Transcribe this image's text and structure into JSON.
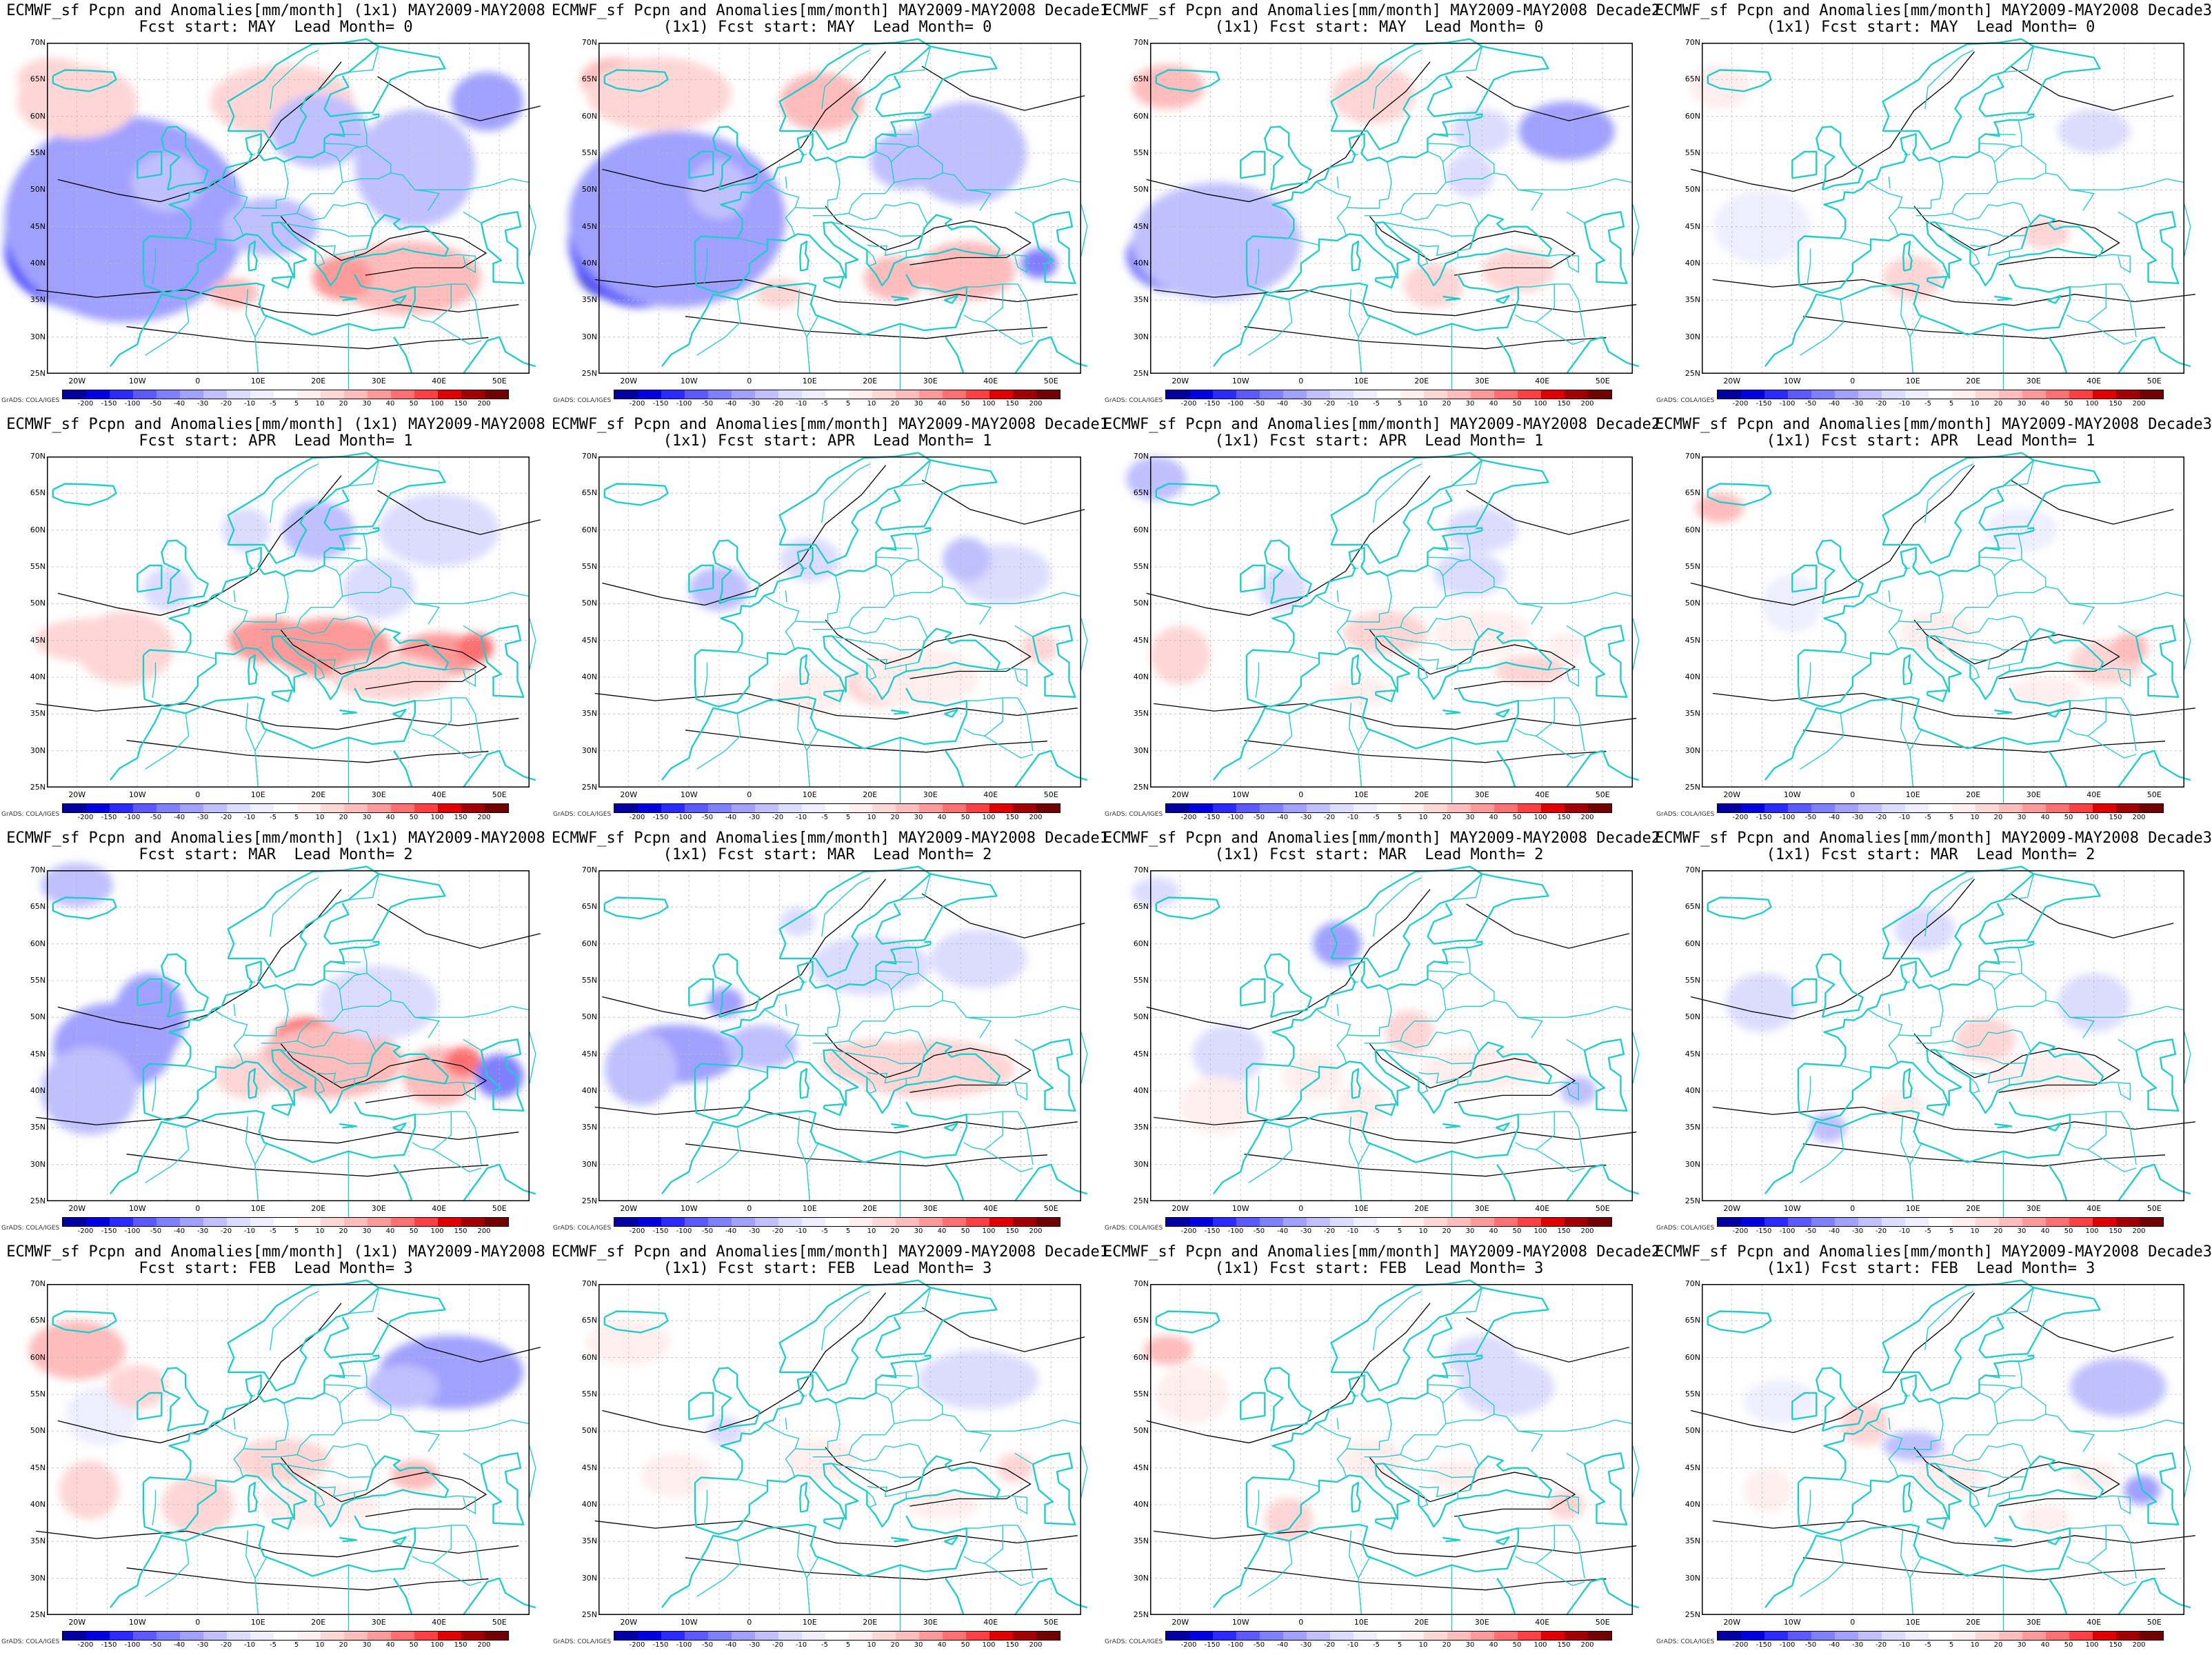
{
  "colorbar": {
    "labels": [
      "-200",
      "-150",
      "-100",
      "-50",
      "-40",
      "-30",
      "-20",
      "-10",
      "-5",
      "5",
      "10",
      "20",
      "30",
      "40",
      "50",
      "100",
      "150",
      "200"
    ],
    "colors": [
      "#0000a0",
      "#0000e0",
      "#2a2aff",
      "#5a5aff",
      "#8080ff",
      "#a0a0ff",
      "#c0c0ff",
      "#dcdcff",
      "#eeeeff",
      "#ffffff",
      "#ffeeee",
      "#ffd6d6",
      "#ffbcbc",
      "#ff9a9a",
      "#ff7070",
      "#ff4040",
      "#e00000",
      "#a00000",
      "#700000"
    ],
    "credit": "GrADS: COLA/IGES"
  },
  "axes": {
    "lat_labels": [
      "70N",
      "65N",
      "60N",
      "55N",
      "50N",
      "45N",
      "40N",
      "35N",
      "30N",
      "25N"
    ],
    "lon_labels": [
      "20W",
      "10W",
      "0",
      "10E",
      "20E",
      "30E",
      "40E",
      "50E"
    ]
  },
  "colors": {
    "coastline": "#22cccc",
    "border": "#22cccc",
    "contour": "#000000"
  },
  "panels": [
    {
      "title1": "ECMWF_sf Pcpn and Anomalies[mm/month] (1x1) MAY2009-MAY2008",
      "title2": "Fcst start: MAY  Lead Month= 0"
    },
    {
      "title1": "ECMWF_sf Pcpn and Anomalies[mm/month] MAY2009-MAY2008 Decade1",
      "title2": "(1x1) Fcst start: MAY  Lead Month= 0"
    },
    {
      "title1": "ECMWF_sf Pcpn and Anomalies[mm/month] MAY2009-MAY2008 Decade2",
      "title2": "(1x1) Fcst start: MAY  Lead Month= 0"
    },
    {
      "title1": "ECMWF_sf Pcpn and Anomalies[mm/month] MAY2009-MAY2008 Decade3",
      "title2": "(1x1) Fcst start: MAY  Lead Month= 0"
    },
    {
      "title1": "ECMWF_sf Pcpn and Anomalies[mm/month] (1x1) MAY2009-MAY2008",
      "title2": "Fcst start: APR  Lead Month= 1"
    },
    {
      "title1": "ECMWF_sf Pcpn and Anomalies[mm/month] MAY2009-MAY2008 Decade1",
      "title2": "(1x1) Fcst start: APR  Lead Month= 1"
    },
    {
      "title1": "ECMWF_sf Pcpn and Anomalies[mm/month] MAY2009-MAY2008 Decade2",
      "title2": "(1x1) Fcst start: APR  Lead Month= 1"
    },
    {
      "title1": "ECMWF_sf Pcpn and Anomalies[mm/month] MAY2009-MAY2008 Decade3",
      "title2": "(1x1) Fcst start: APR  Lead Month= 1"
    },
    {
      "title1": "ECMWF_sf Pcpn and Anomalies[mm/month] (1x1) MAY2009-MAY2008",
      "title2": "Fcst start: MAR  Lead Month= 2"
    },
    {
      "title1": "ECMWF_sf Pcpn and Anomalies[mm/month] MAY2009-MAY2008 Decade1",
      "title2": "(1x1) Fcst start: MAR  Lead Month= 2"
    },
    {
      "title1": "ECMWF_sf Pcpn and Anomalies[mm/month] MAY2009-MAY2008 Decade2",
      "title2": "(1x1) Fcst start: MAR  Lead Month= 2"
    },
    {
      "title1": "ECMWF_sf Pcpn and Anomalies[mm/month] MAY2009-MAY2008 Decade3",
      "title2": "(1x1) Fcst start: MAR  Lead Month= 2"
    },
    {
      "title1": "ECMWF_sf Pcpn and Anomalies[mm/month] (1x1) MAY2009-MAY2008",
      "title2": "Fcst start: FEB  Lead Month= 3"
    },
    {
      "title1": "ECMWF_sf Pcpn and Anomalies[mm/month] MAY2009-MAY2008 Decade1",
      "title2": "(1x1) Fcst start: FEB  Lead Month= 3"
    },
    {
      "title1": "ECMWF_sf Pcpn and Anomalies[mm/month] MAY2009-MAY2008 Decade2",
      "title2": "(1x1) Fcst start: FEB  Lead Month= 3"
    },
    {
      "title1": "ECMWF_sf Pcpn and Anomalies[mm/month] MAY2009-MAY2008 Decade3",
      "title2": "(1x1) Fcst start: FEB  Lead Month= 3"
    }
  ]
}
